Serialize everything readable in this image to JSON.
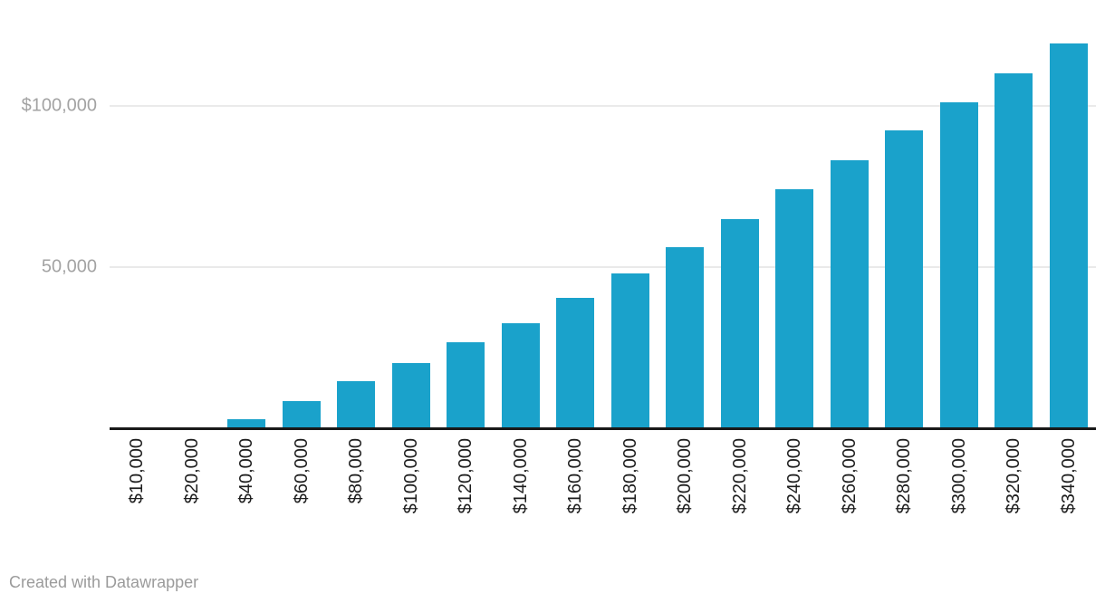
{
  "chart_data": {
    "type": "bar",
    "title": "",
    "xlabel": "",
    "ylabel": "",
    "categories": [
      "$10,000",
      "$20,000",
      "$40,000",
      "$60,000",
      "$80,000",
      "$100,000",
      "$120,000",
      "$140,000",
      "$160,000",
      "$180,000",
      "$200,000",
      "$220,000",
      "$240,000",
      "$260,000",
      "$280,000",
      "$300,000",
      "$320,000",
      "$340,000"
    ],
    "values": [
      0,
      0,
      2600,
      8100,
      14300,
      20100,
      26400,
      32500,
      40200,
      47800,
      56000,
      64900,
      74000,
      83000,
      92300,
      101300,
      110300,
      119400
    ],
    "ylim": [
      0,
      133000
    ],
    "yticks": [
      {
        "value": 50000,
        "label": "50,000"
      },
      {
        "value": 100000,
        "label": "$100,000"
      }
    ],
    "grid": true,
    "legend": "none",
    "bar_color": "#1aa2cb"
  },
  "colors": {
    "bar": "#1aa2cb",
    "axis_line": "#191919",
    "gridline": "#eaeaea",
    "y_tick_text": "#a3a3a3",
    "x_tick_text": "#1d1d1d",
    "credit_text": "#9b9b9b",
    "background": "#ffffff"
  },
  "footer": {
    "credit": "Created with Datawrapper"
  }
}
